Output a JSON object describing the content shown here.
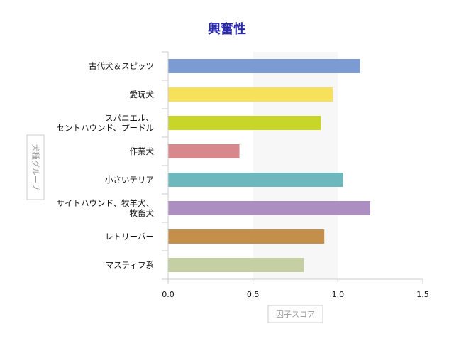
{
  "chart_data": {
    "type": "bar",
    "orientation": "horizontal",
    "title": "興奮性",
    "xlabel": "因子スコア",
    "ylabel": "犬種グループ",
    "categories": [
      "古代犬＆スピッツ",
      "愛玩犬",
      "スパニエル、\nセントハウンド、プードル",
      "作業犬",
      "小さいテリア",
      "サイトハウンド、牧羊犬、\n牧畜犬",
      "レトリーバー",
      "マスティフ系"
    ],
    "values": [
      1.13,
      0.97,
      0.9,
      0.42,
      1.03,
      1.19,
      0.92,
      0.8
    ],
    "colors": [
      "#7b9bd2",
      "#f7e15a",
      "#c8d62a",
      "#d8878c",
      "#6db8bc",
      "#ad8ec0",
      "#c48f4a",
      "#c4cfa4"
    ],
    "xlim": [
      0,
      1.5
    ],
    "xticks": [
      "0.0",
      "0.5",
      "1.0",
      "1.5"
    ],
    "xtick_values": [
      0,
      0.5,
      1.0,
      1.5
    ],
    "shaded_range": [
      0.5,
      1.0
    ],
    "shaded_color": "#f7f7f7",
    "legend": "none",
    "grid": false
  }
}
